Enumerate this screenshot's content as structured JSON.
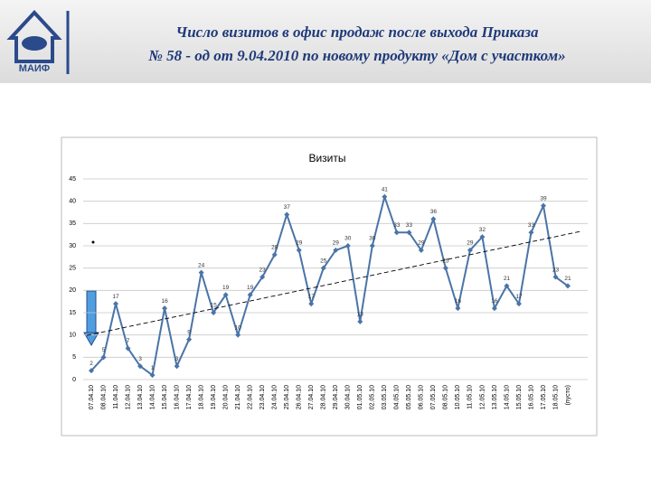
{
  "header": {
    "title_line1": "Число визитов в офис продаж после выхода Приказа",
    "title_line2": "№ 58 - од от 9.04.2010 по новому продукту «Дом с участком»",
    "logo": "МАИФ"
  },
  "chart_data": {
    "type": "line",
    "title": "Визиты",
    "categories": [
      "07.04.10",
      "08.04.10",
      "11.04.10",
      "12.04.10",
      "13.04.10",
      "14.04.10",
      "15.04.10",
      "16.04.10",
      "17.04.10",
      "18.04.10",
      "19.04.10",
      "20.04.10",
      "21.04.10",
      "22.04.10",
      "23.04.10",
      "24.04.10",
      "25.04.10",
      "26.04.10",
      "27.04.10",
      "28.04.10",
      "29.04.10",
      "30.04.10",
      "01.05.10",
      "02.05.10",
      "03.05.10",
      "04.05.10",
      "05.05.10",
      "06.05.10",
      "07.05.10",
      "08.05.10",
      "10.05.10",
      "11.05.10",
      "12.05.10",
      "13.05.10",
      "14.05.10",
      "15.05.10",
      "16.05.10",
      "17.05.10",
      "18.05.10",
      "(пусто)"
    ],
    "values": [
      2,
      5,
      17,
      7,
      3,
      1,
      16,
      3,
      9,
      24,
      15,
      19,
      10,
      19,
      23,
      28,
      37,
      29,
      17,
      25,
      29,
      30,
      13,
      30,
      41,
      33,
      33,
      29,
      36,
      25,
      16,
      29,
      32,
      16,
      21,
      17,
      33,
      39,
      23,
      21
    ],
    "color": "#4a74a8",
    "trendline": true,
    "ylim": [
      0,
      45
    ],
    "yticks": [
      0,
      5,
      10,
      15,
      20,
      25,
      30,
      35,
      40,
      45
    ],
    "grid": true
  }
}
